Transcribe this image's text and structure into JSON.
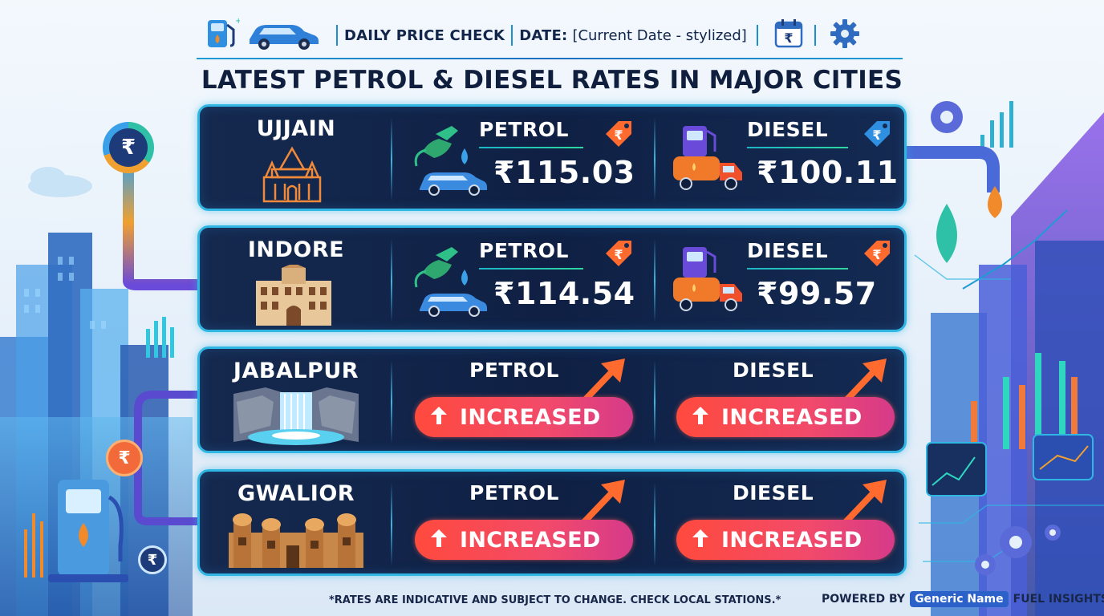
{
  "header": {
    "title": "DAILY PRICE CHECK",
    "date_label": "DATE:",
    "date_value": "[Current Date - stylized]",
    "currency_symbol": "₹"
  },
  "main_title": "LATEST PETROL & DIESEL RATES IN MAJOR CITIES",
  "cities": [
    {
      "name": "UJJAIN",
      "petrol_label": "PETROL",
      "petrol_price": "₹115.03",
      "diesel_label": "DIESEL",
      "diesel_price": "₹100.11"
    },
    {
      "name": "INDORE",
      "petrol_label": "PETROL",
      "petrol_price": "₹114.54",
      "diesel_label": "DIESEL",
      "diesel_price": "₹99.57"
    },
    {
      "name": "JABALPUR",
      "petrol_label": "PETROL",
      "petrol_status": "INCREASED",
      "diesel_label": "DIESEL",
      "diesel_status": "INCREASED"
    },
    {
      "name": "GWALIOR",
      "petrol_label": "PETROL",
      "petrol_status": "INCREASED",
      "diesel_label": "DIESEL",
      "diesel_status": "INCREASED"
    }
  ],
  "footer": {
    "note": "*RATES ARE INDICATIVE AND SUBJECT TO CHANGE. CHECK LOCAL STATIONS.*",
    "powered_by": "POWERED BY",
    "brand": "Generic Name",
    "suffix": "FUEL INSIGHTS"
  },
  "colors": {
    "row_bg": "#0f2044",
    "row_border": "#2fb6e3",
    "increase": "#ff4a3d",
    "tag_orange": "#ff6a2e",
    "tag_blue": "#2f8fe0"
  },
  "icons": [
    "fuel-pump-icon",
    "car-icon",
    "calendar-rupee-icon",
    "gear-icon",
    "rupee-coin-icon",
    "fuel-drop-icon",
    "price-tag-icon",
    "tanker-truck-icon",
    "up-arrow-icon",
    "trend-arrow-icon"
  ]
}
